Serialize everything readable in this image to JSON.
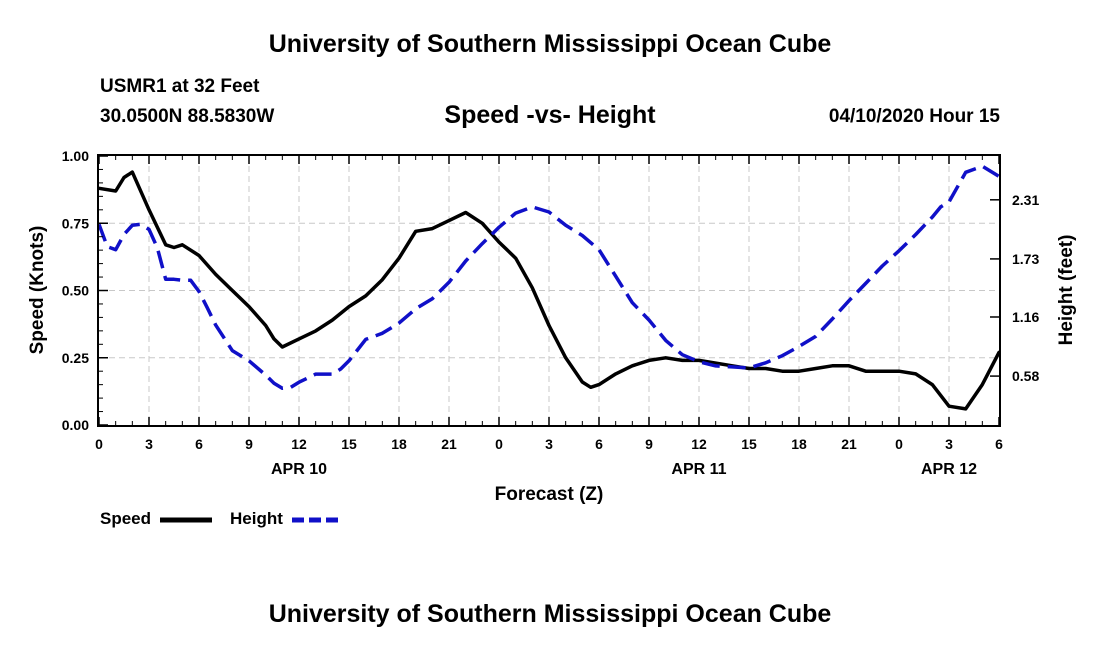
{
  "header": {
    "title": "University of Southern Mississippi Ocean Cube",
    "station": "USMR1 at 32 Feet",
    "coordinates": "30.0500N 88.5830W",
    "forecast_time": "04/10/2020 Hour 15"
  },
  "footer": {
    "title": "University of Southern Mississippi Ocean Cube"
  },
  "legend": {
    "speed_label": "Speed",
    "height_label": "Height"
  },
  "chart_data": {
    "type": "line",
    "title": "Speed -vs- Height",
    "xlabel": "Forecast (Z)",
    "ylabel": "Speed (Knots)",
    "y2label": "Height (feet)",
    "xlim": [
      0,
      54
    ],
    "ylim": [
      0,
      1
    ],
    "y2lim": [
      0.1,
      2.74
    ],
    "grid": true,
    "x_tick_labels": [
      "0",
      "3",
      "6",
      "9",
      "12",
      "15",
      "18",
      "21",
      "0",
      "3",
      "6",
      "9",
      "12",
      "15",
      "18",
      "21",
      "0",
      "3",
      "6"
    ],
    "date_labels": [
      {
        "label": "APR 10",
        "x": 12
      },
      {
        "label": "APR 11",
        "x": 36
      },
      {
        "label": "APR 12",
        "x": 51
      }
    ],
    "y_ticks": [
      0,
      0.25,
      0.5,
      0.75,
      1.0
    ],
    "y_tick_labels": [
      "0.00",
      "0.25",
      "0.50",
      "0.75",
      "1.00"
    ],
    "y2_ticks": [
      0.58,
      1.16,
      1.73,
      2.31
    ],
    "y2_tick_labels": [
      "0.58",
      "1.16",
      "1.73",
      "2.31"
    ],
    "colors": {
      "speed": "#000000",
      "height": "#1010c8",
      "grid": "#c8c8c8"
    },
    "series": [
      {
        "name": "Speed",
        "axis": "left",
        "style": "solid",
        "x": [
          0,
          1,
          1.5,
          2,
          3,
          4,
          4.5,
          5,
          6,
          7,
          8,
          9,
          10,
          10.5,
          11,
          12,
          13,
          14,
          15,
          16,
          17,
          18,
          19,
          20,
          21,
          22,
          23,
          24,
          25,
          26,
          27,
          28,
          29,
          29.5,
          30,
          31,
          32,
          33,
          34,
          35,
          36,
          37,
          38,
          39,
          40,
          41,
          42,
          43,
          44,
          45,
          46,
          47,
          48,
          49,
          50,
          51,
          52,
          53,
          54
        ],
        "values": [
          0.88,
          0.87,
          0.92,
          0.94,
          0.8,
          0.67,
          0.66,
          0.67,
          0.63,
          0.56,
          0.5,
          0.44,
          0.37,
          0.32,
          0.29,
          0.32,
          0.35,
          0.39,
          0.44,
          0.48,
          0.54,
          0.62,
          0.72,
          0.73,
          0.76,
          0.79,
          0.75,
          0.68,
          0.62,
          0.51,
          0.37,
          0.25,
          0.16,
          0.14,
          0.15,
          0.19,
          0.22,
          0.24,
          0.25,
          0.24,
          0.24,
          0.23,
          0.22,
          0.21,
          0.21,
          0.2,
          0.2,
          0.21,
          0.22,
          0.22,
          0.2,
          0.2,
          0.2,
          0.19,
          0.15,
          0.07,
          0.06,
          0.15,
          0.27
        ]
      },
      {
        "name": "Height",
        "axis": "right",
        "style": "dashed",
        "x": [
          0,
          0.5,
          1,
          1.5,
          2,
          2.5,
          3,
          3.5,
          4,
          4.5,
          5,
          5.5,
          6,
          6.5,
          7,
          8,
          9,
          10,
          10.5,
          11,
          11.5,
          12,
          13,
          13.5,
          14,
          14.5,
          15,
          16,
          17,
          18,
          19,
          20,
          21,
          22,
          23,
          24,
          25,
          26,
          27,
          28,
          29,
          30,
          31,
          32,
          33,
          34,
          35,
          36,
          37,
          38,
          39,
          40,
          41,
          42,
          43,
          44,
          45,
          46,
          47,
          48,
          49,
          50,
          50.5,
          51,
          52,
          53,
          54
        ],
        "values": [
          2.07,
          1.85,
          1.82,
          1.97,
          2.06,
          2.07,
          2.02,
          1.84,
          1.53,
          1.53,
          1.52,
          1.52,
          1.41,
          1.25,
          1.08,
          0.83,
          0.73,
          0.59,
          0.51,
          0.46,
          0.47,
          0.52,
          0.6,
          0.6,
          0.6,
          0.65,
          0.73,
          0.94,
          1.0,
          1.1,
          1.24,
          1.34,
          1.5,
          1.71,
          1.88,
          2.04,
          2.18,
          2.24,
          2.19,
          2.06,
          1.96,
          1.82,
          1.56,
          1.3,
          1.13,
          0.93,
          0.79,
          0.72,
          0.68,
          0.67,
          0.66,
          0.71,
          0.78,
          0.87,
          0.97,
          1.14,
          1.32,
          1.49,
          1.66,
          1.81,
          1.97,
          2.14,
          2.24,
          2.29,
          2.58,
          2.64,
          2.54
        ]
      }
    ]
  }
}
